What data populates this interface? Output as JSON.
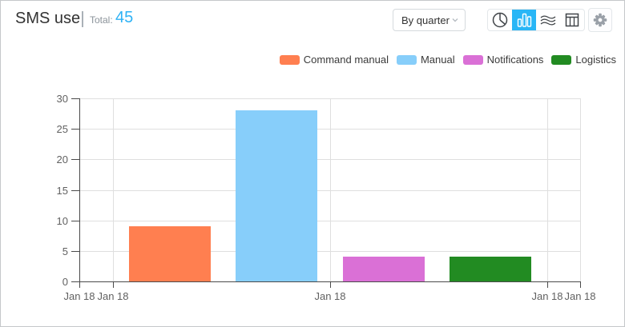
{
  "header": {
    "title": "SMS use",
    "total_label": "Total:",
    "total_value": "45",
    "period_select": {
      "value": "By quarter",
      "chevron_icon": "chevron-down"
    },
    "chart_type_switcher": [
      {
        "name": "pie-chart",
        "selected": false
      },
      {
        "name": "bar-chart",
        "selected": true
      },
      {
        "name": "stream-chart",
        "selected": false
      },
      {
        "name": "table-view",
        "selected": false
      }
    ],
    "settings_icon": "gear"
  },
  "colors": {
    "accent_blue": "#29b6f6",
    "total_value_blue": "#2eb2f5",
    "axis": "#4a4a4a",
    "gridline": "#dfdfdf",
    "axis_label": "#616161"
  },
  "chart_data": {
    "type": "bar",
    "title": "SMS use",
    "total": 45,
    "series": [
      {
        "name": "Command manual",
        "color": "#FF7F50",
        "value": 9
      },
      {
        "name": "Manual",
        "color": "#87CEFA",
        "value": 28
      },
      {
        "name": "Notifications",
        "color": "#DA70D6",
        "value": 4
      },
      {
        "name": "Logistics",
        "color": "#228B22",
        "value": 4
      }
    ],
    "ylim": [
      0,
      30
    ],
    "y_ticks": [
      0,
      5,
      10,
      15,
      20,
      25,
      30
    ],
    "x_tick_labels": [
      "Jan 18",
      "Jan 18",
      "Jan 18",
      "Jan 18",
      "Jan 18"
    ],
    "legend_position": "top-right",
    "grid": true
  }
}
